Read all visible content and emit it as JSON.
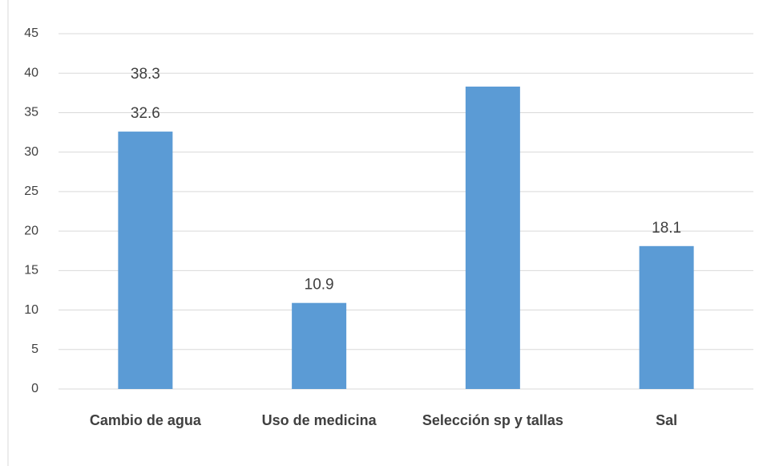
{
  "chart_data": {
    "type": "bar",
    "categories": [
      "Cambio de agua",
      "Uso de medicina",
      "Selección sp y tallas",
      "Sal"
    ],
    "values": [
      32.6,
      10.9,
      38.3,
      18.1
    ],
    "color": "#5b9bd5",
    "ylim": [
      0,
      45
    ],
    "yticks": [
      0,
      5,
      10,
      15,
      20,
      25,
      30,
      35,
      40,
      45
    ],
    "grid": true
  }
}
